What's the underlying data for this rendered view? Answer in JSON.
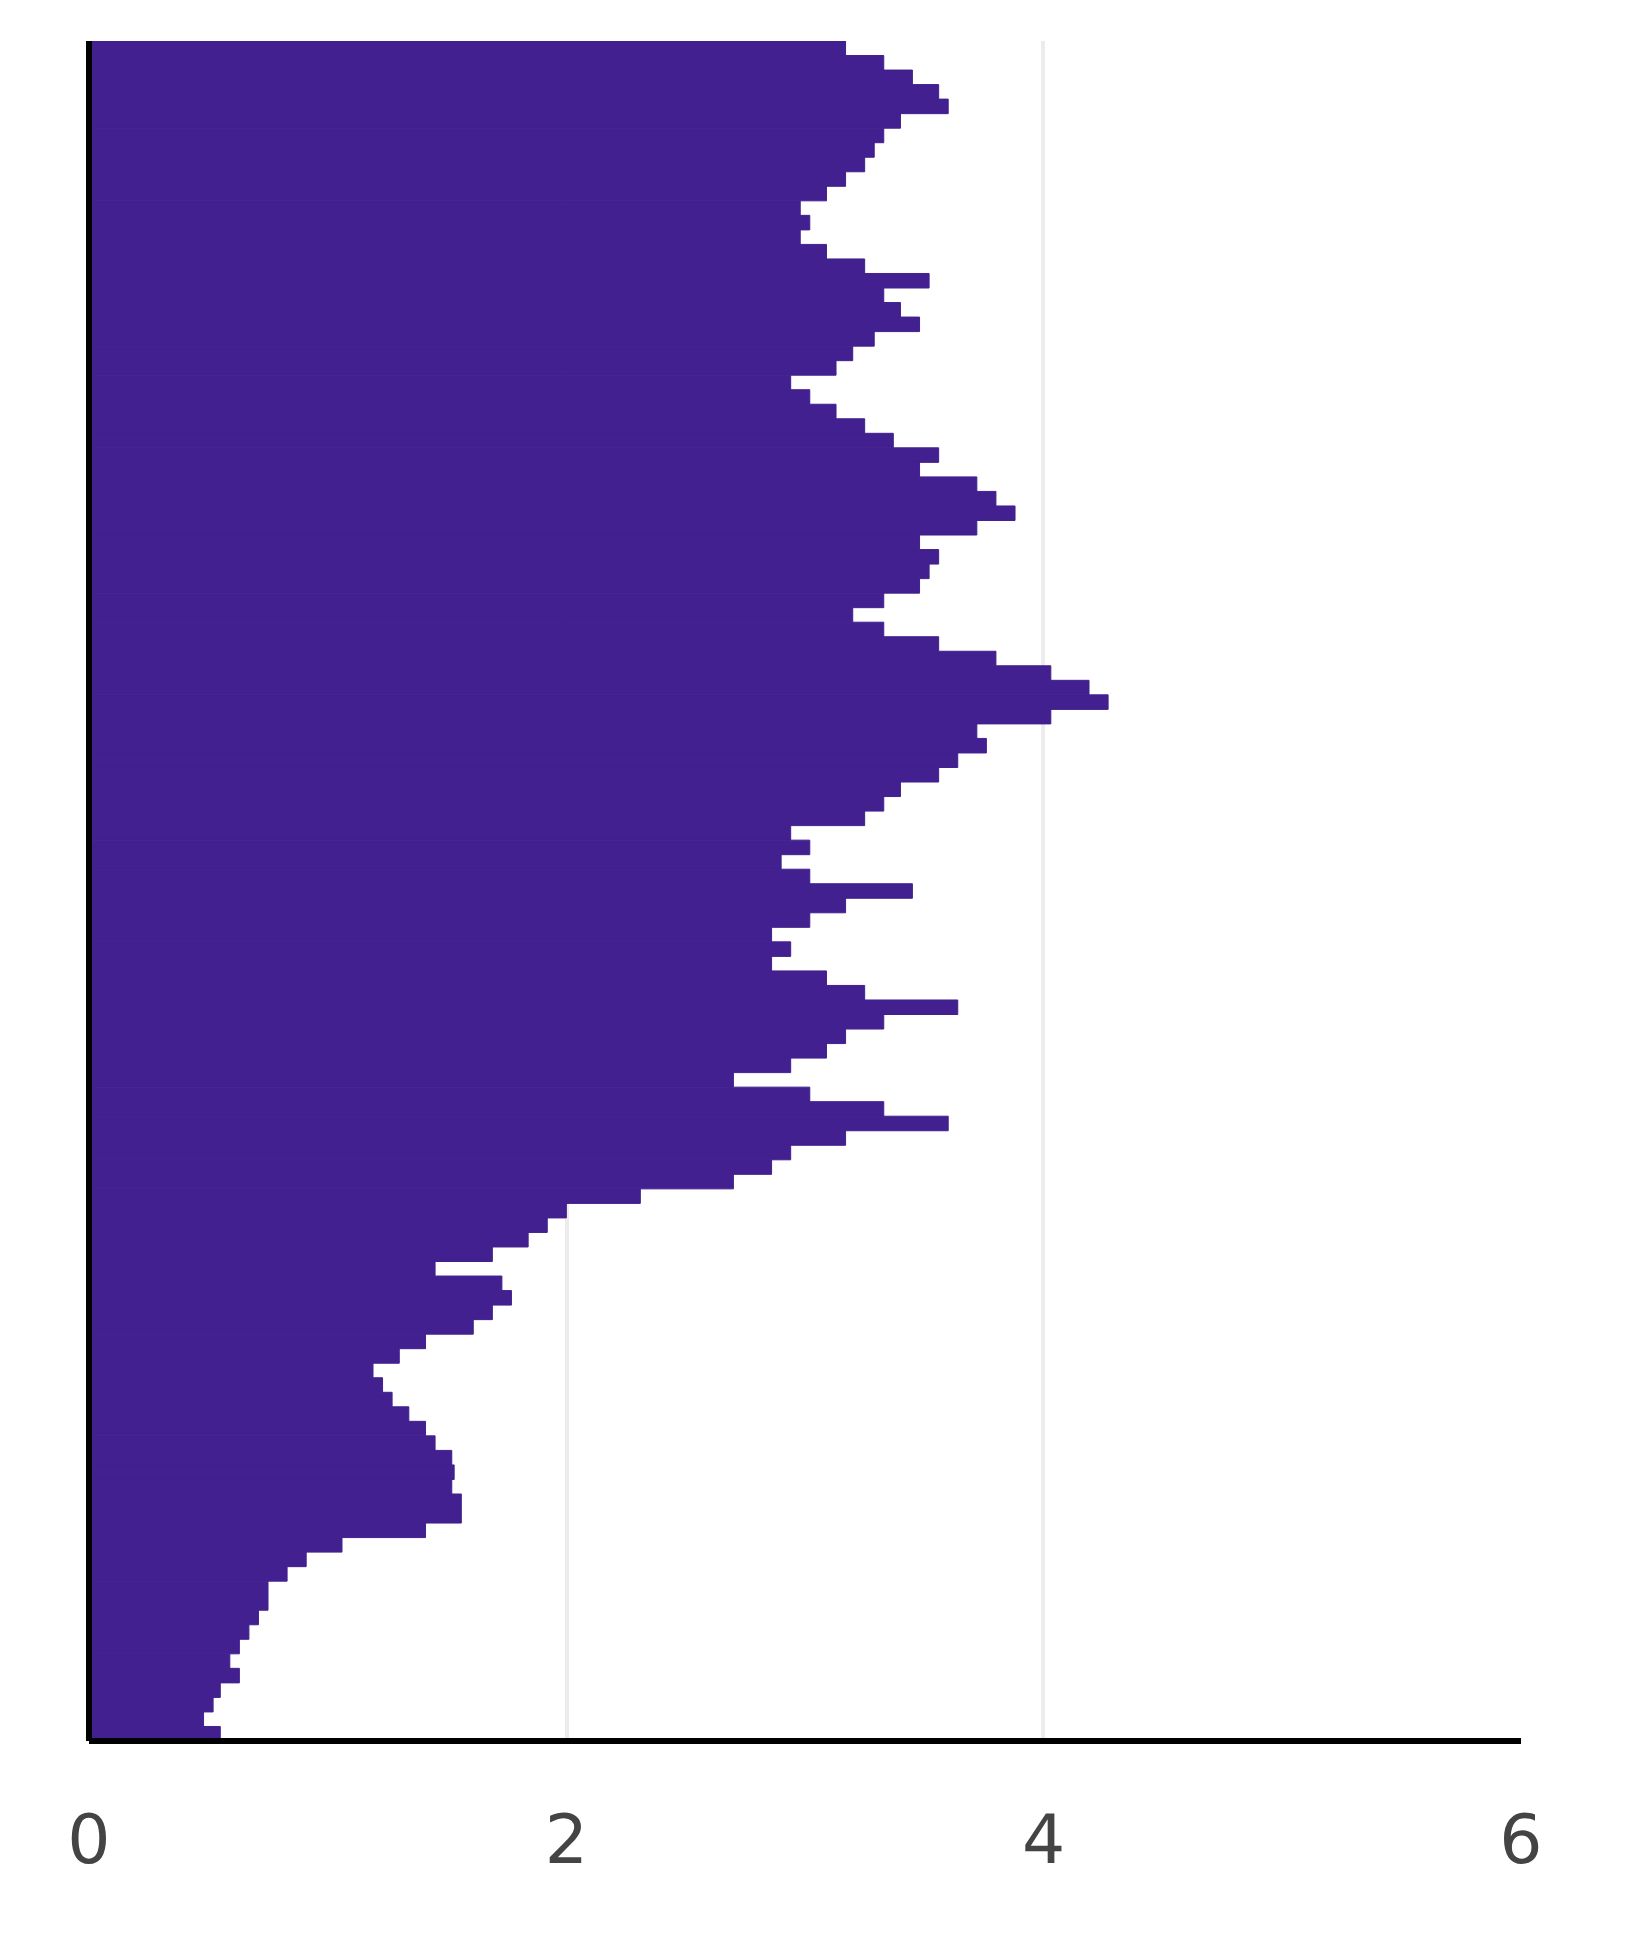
{
  "chart_data": {
    "type": "bar",
    "orientation": "horizontal",
    "categories": [
      null,
      null,
      null,
      null,
      null,
      null,
      null,
      null,
      null,
      null,
      null,
      null,
      null,
      null,
      null,
      null,
      null,
      null,
      null,
      null,
      null,
      null,
      null,
      null,
      null,
      null,
      null,
      null,
      null,
      null,
      null,
      null,
      null,
      null,
      null,
      null,
      null,
      null,
      null,
      null,
      null,
      null,
      null,
      null,
      null,
      null,
      null,
      null,
      null,
      null,
      null,
      null,
      null,
      null,
      null,
      null,
      null,
      null,
      null,
      null,
      null,
      null,
      null,
      null,
      null,
      null,
      null,
      null,
      null,
      null,
      null,
      null,
      null,
      null,
      null,
      null,
      null,
      null,
      null,
      null,
      null,
      null,
      null,
      null,
      null,
      null,
      null,
      null,
      null,
      null,
      null,
      null,
      null,
      null,
      null,
      null,
      null,
      null,
      null,
      null,
      null,
      null,
      null,
      null,
      null,
      null,
      null,
      null,
      null,
      null,
      null,
      null,
      null,
      null,
      null,
      null,
      null
    ],
    "values": [
      3.17,
      3.33,
      3.45,
      3.56,
      3.6,
      3.4,
      3.33,
      3.29,
      3.25,
      3.17,
      3.09,
      2.98,
      3.02,
      2.98,
      3.09,
      3.25,
      3.52,
      3.33,
      3.4,
      3.48,
      3.29,
      3.2,
      3.13,
      2.94,
      3.02,
      3.13,
      3.25,
      3.37,
      3.56,
      3.48,
      3.72,
      3.8,
      3.88,
      3.72,
      3.48,
      3.56,
      3.52,
      3.48,
      3.33,
      3.2,
      3.33,
      3.56,
      3.8,
      4.03,
      4.19,
      4.27,
      4.03,
      3.72,
      3.76,
      3.64,
      3.56,
      3.4,
      3.33,
      3.25,
      2.94,
      3.02,
      2.9,
      3.02,
      3.45,
      3.17,
      3.02,
      2.86,
      2.94,
      2.86,
      3.09,
      3.25,
      3.64,
      3.33,
      3.17,
      3.09,
      2.94,
      2.7,
      3.02,
      3.33,
      3.6,
      3.17,
      2.94,
      2.86,
      2.7,
      2.31,
      2.0,
      1.92,
      1.84,
      1.69,
      1.45,
      1.73,
      1.77,
      1.69,
      1.61,
      1.41,
      1.3,
      1.19,
      1.23,
      1.27,
      1.34,
      1.41,
      1.45,
      1.52,
      1.53,
      1.52,
      1.56,
      1.56,
      1.41,
      1.06,
      0.91,
      0.83,
      0.75,
      0.75,
      0.71,
      0.67,
      0.63,
      0.59,
      0.63,
      0.55,
      0.52,
      0.48,
      0.55
    ],
    "color": "#42208f",
    "xlim": [
      0,
      6
    ],
    "xticks": [
      0,
      2,
      4,
      6
    ],
    "grid": "x"
  }
}
